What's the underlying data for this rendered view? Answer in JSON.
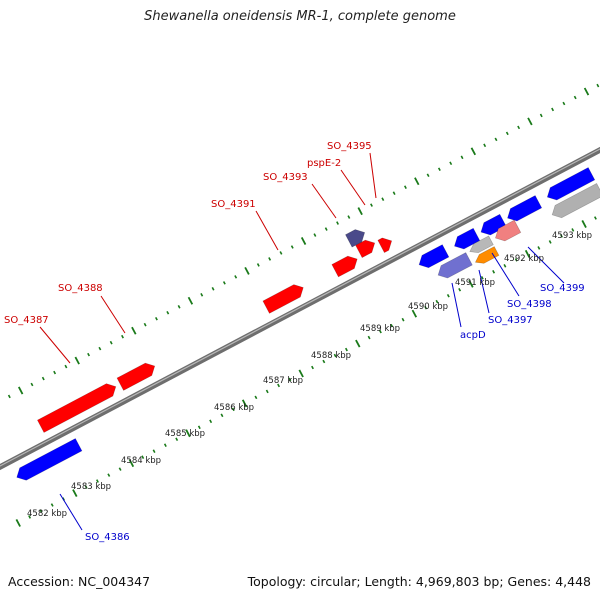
{
  "title": "Shewanella oneidensis MR-1, complete genome",
  "footer": {
    "accession": "Accession: NC_004347",
    "topology": "Topology: circular; Length: 4,969,803 bp; Genes: 4,448"
  },
  "colors": {
    "backbone": "#8a8a8a",
    "ticks": "#1a7a1a",
    "forward_gene": "#ff0000",
    "reverse_gene": "#0000ff",
    "forward_label": "#cc0000",
    "reverse_label": "#0000cc"
  },
  "ticks": {
    "labels": [
      "4582 kbp",
      "4583 kbp",
      "4584 kbp",
      "4585 kbp",
      "4586 kbp",
      "4587 kbp",
      "4588 kbp",
      "4589 kbp",
      "4590 kbp",
      "4591 kbp",
      "4592 kbp",
      "4593 kbp"
    ]
  },
  "genes": {
    "forward": [
      {
        "label": "SO_4387",
        "color": "#ff0000"
      },
      {
        "label": "SO_4388",
        "color": "#ff0000"
      },
      {
        "label": "SO_4391",
        "color": "#ff0000"
      },
      {
        "label": "SO_4393",
        "color": "#ff0000"
      },
      {
        "label": "pspE-2",
        "color": "#ff0000"
      },
      {
        "label": "SO_4395",
        "color": "#4a4a8a"
      }
    ],
    "reverse": [
      {
        "label": "SO_4386",
        "color": "#0000ff"
      },
      {
        "label": "acpD",
        "color": "#7070d0"
      },
      {
        "label": "SO_4397",
        "color": "#ff8c00"
      },
      {
        "label": "SO_4398",
        "color": "#b0b0b0"
      },
      {
        "label": "SO_4399",
        "color": "#f08080"
      }
    ]
  }
}
